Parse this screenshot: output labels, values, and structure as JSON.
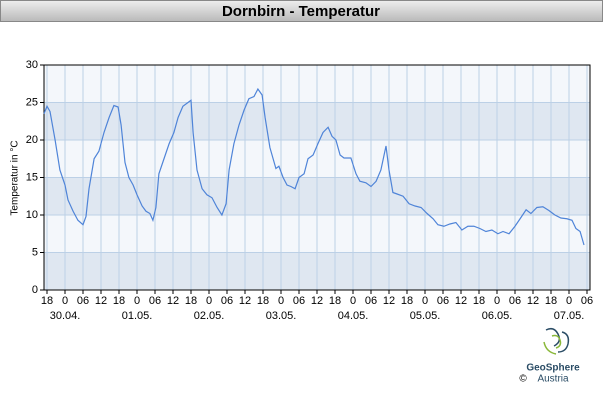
{
  "chart_data": {
    "type": "line",
    "title": "Dornbirn - Temperatur",
    "y_label": "Temperatur in °C",
    "x": [
      -7,
      -6,
      -5,
      -3.3,
      -1.7,
      0,
      1,
      2.7,
      4.3,
      6,
      7,
      8,
      9.7,
      11.3,
      13,
      14.7,
      16.3,
      17.7,
      18.7,
      20,
      21.3,
      22.7,
      24,
      25.7,
      27,
      28.3,
      29.3,
      30.3,
      31.3,
      33,
      34.7,
      36.3,
      37.7,
      39.3,
      41,
      42,
      42.7,
      44,
      45.7,
      47.3,
      49,
      50.7,
      52.3,
      53.7,
      54.7,
      56.3,
      58,
      59.7,
      61.3,
      63,
      64.3,
      65.7,
      66.7,
      68.3,
      70.3,
      71.3,
      72.7,
      74,
      75.3,
      76.7,
      78,
      79.7,
      81,
      82.7,
      84.3,
      86,
      87.7,
      89,
      90.3,
      91.7,
      93,
      95.3,
      97,
      98.3,
      100.3,
      102,
      103.7,
      105.3,
      107,
      108,
      109.3,
      110.7,
      112.7,
      114.7,
      116.7,
      118.7,
      120.7,
      122.7,
      124.3,
      126.3,
      128.3,
      130.3,
      132.3,
      134.3,
      136.3,
      138.3,
      140.3,
      142.3,
      144.3,
      146,
      148,
      150,
      151.7,
      153.7,
      155.3,
      157.3,
      159.3,
      161.3,
      163.3,
      165.3,
      167.3,
      169,
      170.3,
      171.7,
      173
    ],
    "series": [
      {
        "name": "Temperatur",
        "color": "#4f84d8",
        "values": [
          23.5,
          24.5,
          23.8,
          20,
          16,
          14,
          12,
          10.5,
          9.3,
          8.7,
          9.8,
          13.5,
          17.5,
          18.5,
          21,
          23,
          24.6,
          24.4,
          22,
          17,
          15,
          14,
          12.7,
          11.2,
          10.5,
          10.2,
          9.3,
          11,
          15.5,
          17.5,
          19.5,
          21,
          23,
          24.5,
          25,
          25.3,
          21,
          16,
          13.5,
          12.7,
          12.3,
          11,
          10,
          11.5,
          16,
          19.5,
          22,
          24,
          25.5,
          25.8,
          26.8,
          26,
          23,
          19,
          16.2,
          16.5,
          15,
          14,
          13.8,
          13.5,
          15,
          15.5,
          17.5,
          18,
          19.5,
          21,
          21.7,
          20.5,
          20,
          18,
          17.6,
          17.6,
          15.5,
          14.5,
          14.3,
          13.8,
          14.5,
          16,
          19.2,
          16,
          13,
          12.8,
          12.5,
          11.5,
          11.2,
          11,
          10.2,
          9.5,
          8.7,
          8.5,
          8.8,
          9,
          8,
          8.5,
          8.5,
          8.2,
          7.8,
          8,
          7.5,
          7.8,
          7.5,
          8.5,
          9.5,
          10.7,
          10.2,
          11,
          11.1,
          10.6,
          10,
          9.6,
          9.5,
          9.3,
          8.2,
          7.8,
          6
        ]
      }
    ],
    "xlim": [
      -7,
      175
    ],
    "xticks": [
      {
        "value": -6,
        "label": "18"
      },
      0,
      {
        "value": 6,
        "label": "06"
      },
      {
        "value": 12,
        "label": "12"
      },
      {
        "value": 18,
        "label": "18"
      },
      {
        "value": 24,
        "label": "0"
      },
      {
        "value": 30,
        "label": "06"
      },
      {
        "value": 36,
        "label": "12"
      },
      {
        "value": 42,
        "label": "18"
      },
      {
        "value": 48,
        "label": "0"
      },
      {
        "value": 54,
        "label": "06"
      },
      {
        "value": 60,
        "label": "12"
      },
      {
        "value": 66,
        "label": "18"
      },
      {
        "value": 72,
        "label": "0"
      },
      {
        "value": 78,
        "label": "06"
      },
      {
        "value": 84,
        "label": "12"
      },
      {
        "value": 90,
        "label": "18"
      },
      {
        "value": 96,
        "label": "0"
      },
      {
        "value": 102,
        "label": "06"
      },
      {
        "value": 108,
        "label": "12"
      },
      {
        "value": 114,
        "label": "18"
      },
      {
        "value": 120,
        "label": "0"
      },
      {
        "value": 126,
        "label": "06"
      },
      {
        "value": 132,
        "label": "12"
      },
      {
        "value": 138,
        "label": "18"
      },
      {
        "value": 144,
        "label": "0"
      },
      {
        "value": 150,
        "label": "06"
      },
      {
        "value": 156,
        "label": "12"
      },
      {
        "value": 162,
        "label": "18"
      },
      {
        "value": 168,
        "label": "0"
      },
      {
        "value": 174,
        "label": "06"
      }
    ],
    "day_labels": [
      {
        "value": 0,
        "label": "30.04."
      },
      {
        "value": 24,
        "label": "01.05."
      },
      {
        "value": 48,
        "label": "02.05."
      },
      {
        "value": 72,
        "label": "03.05."
      },
      {
        "value": 96,
        "label": "04.05."
      },
      {
        "value": 120,
        "label": "05.05."
      },
      {
        "value": 144,
        "label": "06.05."
      },
      {
        "value": 168,
        "label": "07.05."
      }
    ],
    "ylim": [
      0,
      30
    ],
    "yticks": [
      0,
      5,
      10,
      15,
      20,
      25,
      30
    ],
    "grid": true,
    "logo": {
      "name": "GeoSphere",
      "country": "Austria",
      "copyright": "©"
    }
  }
}
